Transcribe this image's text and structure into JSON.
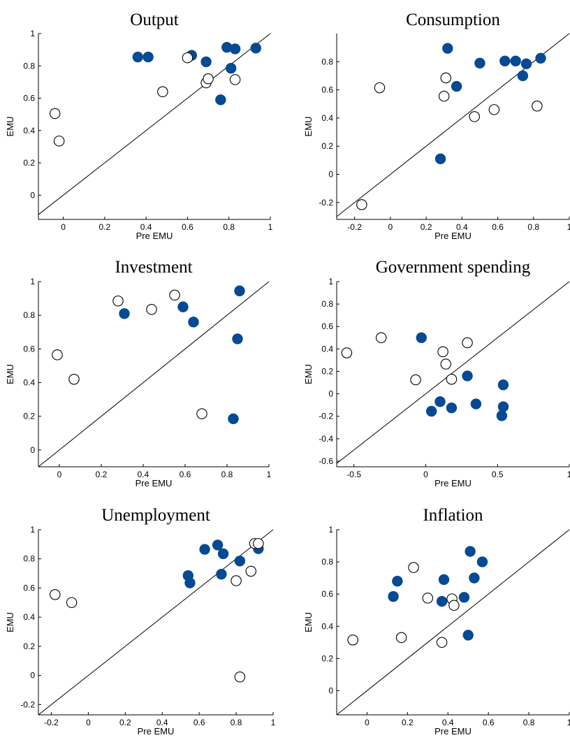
{
  "figure": {
    "x_label": "Pre EMU",
    "y_label": "EMU",
    "colors": {
      "filled": "#064a94",
      "open_fill": "#ffffff",
      "stroke": "#000000"
    }
  },
  "chart_data": [
    {
      "type": "scatter",
      "title": "Output",
      "xlabel": "Pre EMU",
      "ylabel": "EMU",
      "xlim": [
        -0.12,
        1.0
      ],
      "ylim": [
        -0.15,
        1.0
      ],
      "xticks": [
        0,
        0.2,
        0.4,
        0.6,
        0.8,
        1
      ],
      "yticks": [
        0,
        0.2,
        0.4,
        0.6,
        0.8,
        1
      ],
      "xtick_labels": [
        "0",
        "0.2",
        "0.4",
        "0.6",
        "0.8",
        "1"
      ],
      "ytick_labels": [
        "0",
        "0.2",
        "0.4",
        "0.6",
        "0.8",
        "1"
      ],
      "diagonal": true,
      "series": [
        {
          "marker": "filled",
          "points": [
            [
              0.36,
              0.855
            ],
            [
              0.41,
              0.855
            ],
            [
              0.62,
              0.865
            ],
            [
              0.69,
              0.825
            ],
            [
              0.79,
              0.915
            ],
            [
              0.83,
              0.905
            ],
            [
              0.93,
              0.91
            ],
            [
              0.81,
              0.785
            ],
            [
              0.76,
              0.59
            ]
          ]
        },
        {
          "marker": "open",
          "points": [
            [
              -0.04,
              0.505
            ],
            [
              -0.02,
              0.335
            ],
            [
              0.48,
              0.64
            ],
            [
              0.6,
              0.85
            ],
            [
              0.69,
              0.695
            ],
            [
              0.7,
              0.72
            ],
            [
              0.83,
              0.715
            ]
          ]
        }
      ]
    },
    {
      "type": "scatter",
      "title": "Consumption",
      "xlabel": "Pre EMU",
      "ylabel": "EMU",
      "xlim": [
        -0.3,
        1.0
      ],
      "ylim": [
        -0.32,
        1.0
      ],
      "xticks": [
        -0.2,
        0,
        0.2,
        0.4,
        0.6,
        0.8,
        1
      ],
      "yticks": [
        -0.2,
        0,
        0.2,
        0.4,
        0.6,
        0.8
      ],
      "xtick_labels": [
        "-0.2",
        "0",
        "0.2",
        "0.4",
        "0.6",
        "0.8",
        "1"
      ],
      "ytick_labels": [
        "-0.2",
        "0",
        "0.2",
        "0.4",
        "0.6",
        "0.8"
      ],
      "diagonal": true,
      "series": [
        {
          "marker": "filled",
          "points": [
            [
              0.32,
              0.895
            ],
            [
              0.37,
              0.625
            ],
            [
              0.5,
              0.79
            ],
            [
              0.64,
              0.805
            ],
            [
              0.7,
              0.805
            ],
            [
              0.76,
              0.785
            ],
            [
              0.74,
              0.7
            ],
            [
              0.84,
              0.825
            ],
            [
              0.28,
              0.11
            ]
          ]
        },
        {
          "marker": "open",
          "points": [
            [
              -0.06,
              0.615
            ],
            [
              0.31,
              0.685
            ],
            [
              0.3,
              0.555
            ],
            [
              0.47,
              0.41
            ],
            [
              0.58,
              0.46
            ],
            [
              0.82,
              0.485
            ],
            [
              -0.16,
              -0.215
            ]
          ]
        }
      ]
    },
    {
      "type": "scatter",
      "title": "Investment",
      "xlabel": "Pre EMU",
      "ylabel": "EMU",
      "xlim": [
        -0.1,
        1.0
      ],
      "ylim": [
        -0.1,
        1.0
      ],
      "xticks": [
        0,
        0.2,
        0.4,
        0.6,
        0.8,
        1
      ],
      "yticks": [
        0,
        0.2,
        0.4,
        0.6,
        0.8,
        1
      ],
      "xtick_labels": [
        "0",
        "0.2",
        "0.4",
        "0.6",
        "0.8",
        "1"
      ],
      "ytick_labels": [
        "0",
        "0.2",
        "0.4",
        "0.6",
        "0.8",
        "1"
      ],
      "diagonal": true,
      "series": [
        {
          "marker": "filled",
          "points": [
            [
              0.31,
              0.81
            ],
            [
              0.59,
              0.85
            ],
            [
              0.64,
              0.76
            ],
            [
              0.86,
              0.945
            ],
            [
              0.85,
              0.66
            ],
            [
              0.83,
              0.185
            ]
          ]
        },
        {
          "marker": "open",
          "points": [
            [
              -0.01,
              0.565
            ],
            [
              0.07,
              0.42
            ],
            [
              0.28,
              0.885
            ],
            [
              0.44,
              0.835
            ],
            [
              0.55,
              0.92
            ],
            [
              0.68,
              0.215
            ]
          ]
        }
      ]
    },
    {
      "type": "scatter",
      "title": "Government spending",
      "xlabel": "Pre EMU",
      "ylabel": "EMU",
      "xlim": [
        -0.62,
        1.0
      ],
      "ylim": [
        -0.65,
        1.0
      ],
      "xticks": [
        -0.5,
        0,
        0.5,
        1
      ],
      "yticks": [
        -0.6,
        -0.4,
        -0.2,
        0,
        0.2,
        0.4,
        0.6,
        0.8,
        1
      ],
      "xtick_labels": [
        "-0.5",
        "0",
        "0.5",
        "1"
      ],
      "ytick_labels": [
        "-0.6",
        "-0.4",
        "-0.2",
        "0",
        "0.2",
        "0.4",
        "0.6",
        "0.8",
        "1"
      ],
      "diagonal": true,
      "series": [
        {
          "marker": "filled",
          "points": [
            [
              -0.03,
              0.5
            ],
            [
              0.29,
              0.16
            ],
            [
              0.54,
              0.08
            ],
            [
              0.04,
              -0.155
            ],
            [
              0.1,
              -0.07
            ],
            [
              0.18,
              -0.125
            ],
            [
              0.35,
              -0.09
            ],
            [
              0.54,
              -0.115
            ],
            [
              0.53,
              -0.195
            ]
          ]
        },
        {
          "marker": "open",
          "points": [
            [
              -0.55,
              0.365
            ],
            [
              -0.31,
              0.5
            ],
            [
              0.12,
              0.375
            ],
            [
              0.14,
              0.265
            ],
            [
              0.29,
              0.455
            ],
            [
              -0.07,
              0.125
            ],
            [
              0.18,
              0.13
            ]
          ]
        }
      ]
    },
    {
      "type": "scatter",
      "title": "Unemployment",
      "xlabel": "Pre EMU",
      "ylabel": "EMU",
      "xlim": [
        -0.27,
        1.0
      ],
      "ylim": [
        -0.27,
        1.0
      ],
      "xticks": [
        -0.2,
        0,
        0.2,
        0.4,
        0.6,
        0.8,
        1
      ],
      "yticks": [
        -0.2,
        0,
        0.2,
        0.4,
        0.6,
        0.8,
        1
      ],
      "xtick_labels": [
        "-0.2",
        "0",
        "0.2",
        "0.4",
        "0.6",
        "0.8",
        "1"
      ],
      "ytick_labels": [
        "-0.2",
        "0",
        "0.2",
        "0.4",
        "0.6",
        "0.8",
        "1"
      ],
      "diagonal": true,
      "series": [
        {
          "marker": "filled",
          "points": [
            [
              0.54,
              0.685
            ],
            [
              0.55,
              0.635
            ],
            [
              0.63,
              0.865
            ],
            [
              0.7,
              0.895
            ],
            [
              0.73,
              0.835
            ],
            [
              0.72,
              0.695
            ],
            [
              0.82,
              0.785
            ],
            [
              0.92,
              0.87
            ]
          ]
        },
        {
          "marker": "open",
          "points": [
            [
              -0.18,
              0.555
            ],
            [
              -0.09,
              0.5
            ],
            [
              0.8,
              0.65
            ],
            [
              0.88,
              0.715
            ],
            [
              0.9,
              0.905
            ],
            [
              0.92,
              0.905
            ],
            [
              0.82,
              -0.01
            ]
          ]
        }
      ]
    },
    {
      "type": "scatter",
      "title": "Inflation",
      "xlabel": "Pre EMU",
      "ylabel": "EMU",
      "xlim": [
        -0.15,
        1.0
      ],
      "ylim": [
        -0.15,
        1.0
      ],
      "xticks": [
        0,
        0.2,
        0.4,
        0.6,
        0.8,
        1
      ],
      "yticks": [
        0,
        0.2,
        0.4,
        0.6,
        0.8,
        1
      ],
      "xtick_labels": [
        "0",
        "0.2",
        "0.4",
        "0.6",
        "0.8",
        "1"
      ],
      "ytick_labels": [
        "0",
        "0.2",
        "0.4",
        "0.6",
        "0.8",
        "1"
      ],
      "diagonal": true,
      "series": [
        {
          "marker": "filled",
          "points": [
            [
              0.13,
              0.585
            ],
            [
              0.15,
              0.68
            ],
            [
              0.37,
              0.555
            ],
            [
              0.38,
              0.69
            ],
            [
              0.48,
              0.58
            ],
            [
              0.51,
              0.865
            ],
            [
              0.53,
              0.7
            ],
            [
              0.57,
              0.8
            ],
            [
              0.5,
              0.345
            ]
          ]
        },
        {
          "marker": "open",
          "points": [
            [
              -0.07,
              0.315
            ],
            [
              0.17,
              0.33
            ],
            [
              0.23,
              0.765
            ],
            [
              0.3,
              0.575
            ],
            [
              0.37,
              0.3
            ],
            [
              0.42,
              0.57
            ],
            [
              0.43,
              0.53
            ]
          ]
        }
      ]
    }
  ]
}
